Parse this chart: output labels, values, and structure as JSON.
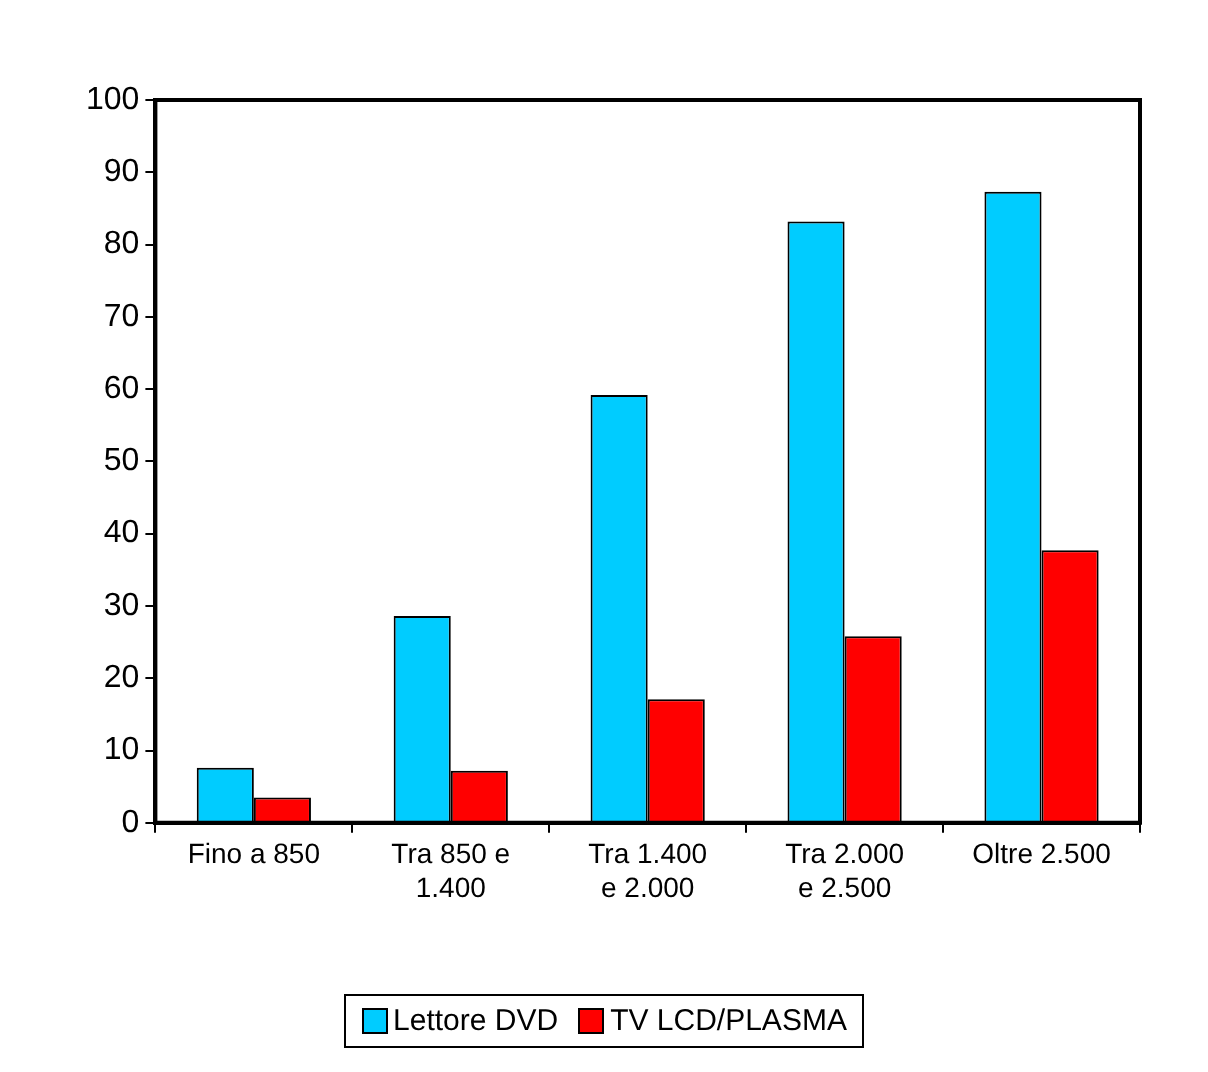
{
  "chart_data": {
    "type": "bar",
    "categories": [
      "Fino a 850",
      "Tra 850 e 1.400",
      "Tra 1.400 e 2.000",
      "Tra 2.000 e 2.500",
      "Oltre 2.500"
    ],
    "series": [
      {
        "name": "Lettore DVD",
        "color": "#00ccff",
        "values": [
          7.6,
          28.6,
          59.2,
          83.2,
          87.3
        ]
      },
      {
        "name": "TV LCD/PLASMA",
        "color": "#ff0000",
        "values": [
          3.5,
          7.2,
          17.1,
          25.8,
          37.7
        ]
      }
    ],
    "ylim": [
      0,
      100
    ],
    "yticks": [
      0,
      10,
      20,
      30,
      40,
      50,
      60,
      70,
      80,
      90,
      100
    ],
    "grid": false,
    "legend": "bottom"
  }
}
